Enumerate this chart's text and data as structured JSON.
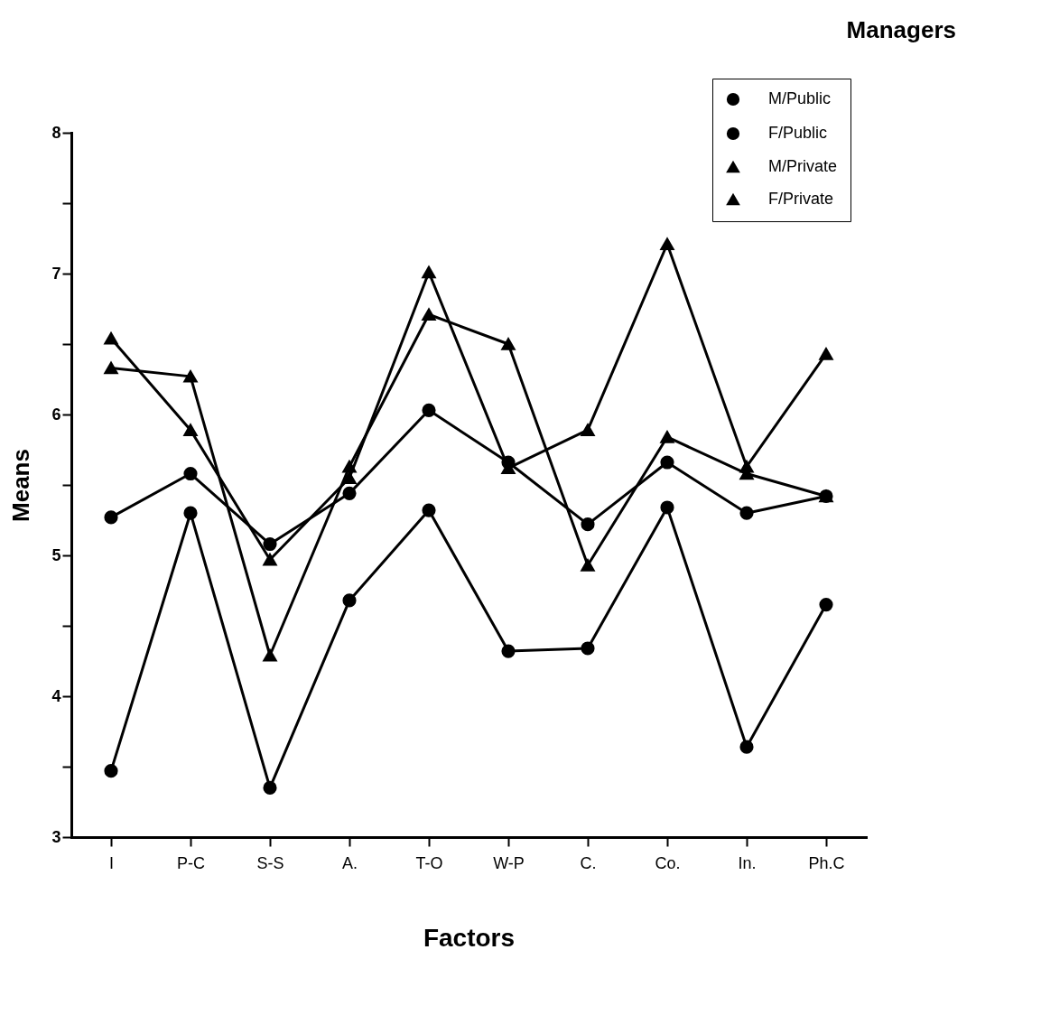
{
  "chart_data": {
    "type": "line",
    "title": "Managers",
    "xlabel": "Factors",
    "ylabel": "Means",
    "categories": [
      "I",
      "P-C",
      "S-S",
      "A.",
      "T-O",
      "W-P",
      "C.",
      "Co.",
      "In.",
      "Ph.C"
    ],
    "series": [
      {
        "name": "M/Public",
        "color": "#000000",
        "marker": "circle",
        "values": [
          5.27,
          5.58,
          5.08,
          5.44,
          6.03,
          5.66,
          5.22,
          5.66,
          5.3,
          5.42
        ]
      },
      {
        "name": "F/Public",
        "color": "#000000",
        "marker": "circle",
        "values": [
          3.47,
          5.3,
          3.35,
          4.68,
          5.32,
          4.32,
          4.34,
          5.34,
          3.64,
          4.65
        ]
      },
      {
        "name": "M/Private",
        "color": "#000000",
        "marker": "triangle",
        "values": [
          6.54,
          5.89,
          4.97,
          5.55,
          7.01,
          5.62,
          5.89,
          7.21,
          5.63,
          6.43
        ]
      },
      {
        "name": "F/Private",
        "color": "#000000",
        "marker": "triangle",
        "values": [
          6.33,
          6.27,
          4.29,
          5.63,
          6.71,
          6.5,
          4.93,
          5.84,
          5.58,
          5.42
        ]
      }
    ],
    "ylim": [
      3,
      8
    ],
    "yticks": [
      3,
      {
        "value": 3.5,
        "label": null
      },
      4,
      {
        "value": 4.5,
        "label": null
      },
      5,
      {
        "value": 5.5,
        "label": null
      },
      6,
      {
        "value": 6.5,
        "label": null
      },
      7,
      {
        "value": 7.5,
        "label": null
      },
      8
    ],
    "grid": false,
    "legend": "top right",
    "line_style": "solid"
  }
}
